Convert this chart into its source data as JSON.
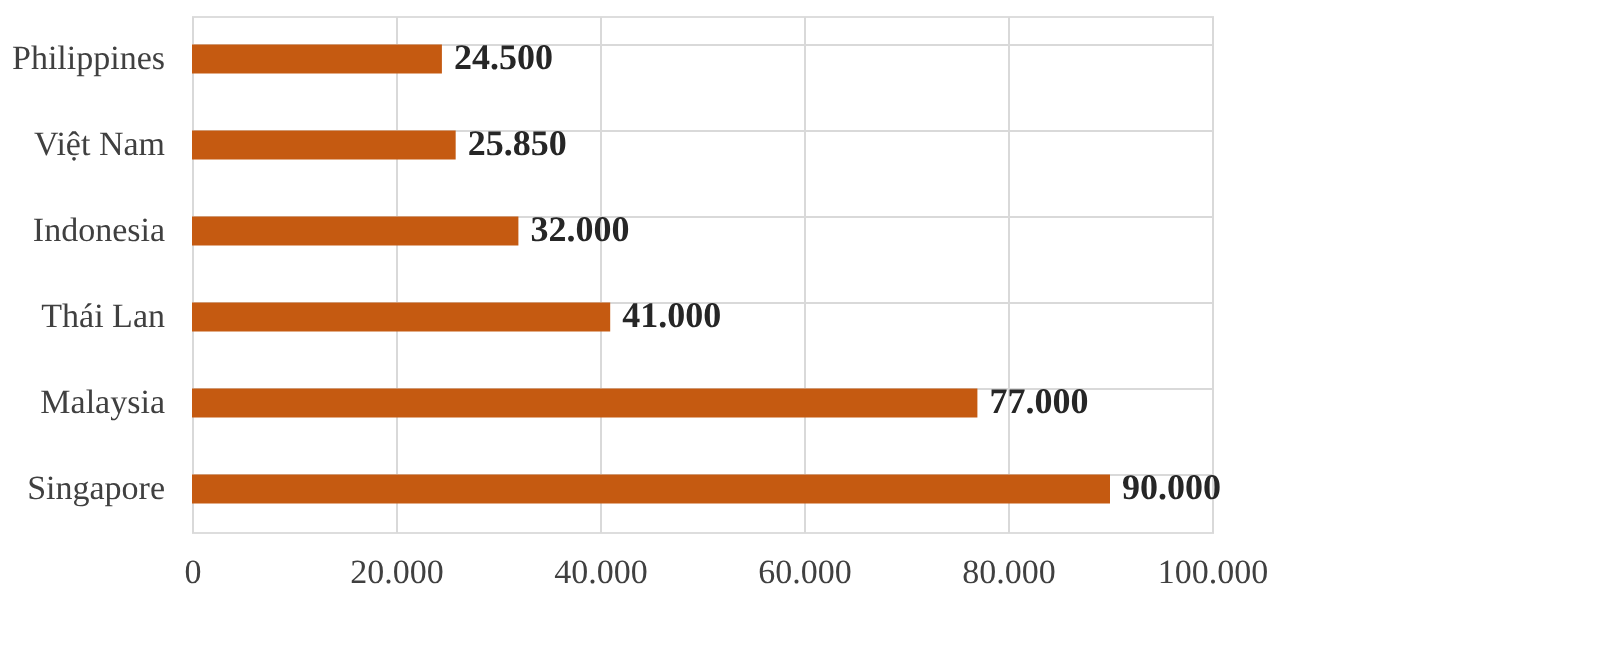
{
  "chart_data": {
    "type": "bar",
    "orientation": "horizontal",
    "categories": [
      "Philippines",
      "Việt Nam",
      "Indonesia",
      "Thái Lan",
      "Malaysia",
      "Singapore"
    ],
    "values": [
      24500,
      25850,
      32000,
      41000,
      77000,
      90000
    ],
    "value_labels": [
      "24.500",
      "25.850",
      "32.000",
      "41.000",
      "77.000",
      "90.000"
    ],
    "color": "#c55a11",
    "xlim": [
      0,
      100000
    ],
    "xticks": [
      {
        "value": 0,
        "label": "0"
      },
      {
        "value": 20000,
        "label": "20.000"
      },
      {
        "value": 40000,
        "label": "40.000"
      },
      {
        "value": 60000,
        "label": "60.000"
      },
      {
        "value": 80000,
        "label": "80.000"
      },
      {
        "value": 100000,
        "label": "100.000"
      }
    ],
    "grid": true
  }
}
